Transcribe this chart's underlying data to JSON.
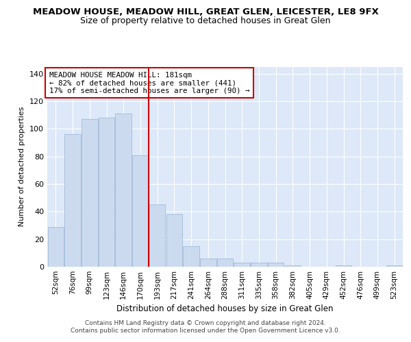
{
  "title": "MEADOW HOUSE, MEADOW HILL, GREAT GLEN, LEICESTER, LE8 9FX",
  "subtitle": "Size of property relative to detached houses in Great Glen",
  "xlabel": "Distribution of detached houses by size in Great Glen",
  "ylabel": "Number of detached properties",
  "categories": [
    "52sqm",
    "76sqm",
    "99sqm",
    "123sqm",
    "146sqm",
    "170sqm",
    "193sqm",
    "217sqm",
    "241sqm",
    "264sqm",
    "288sqm",
    "311sqm",
    "335sqm",
    "358sqm",
    "382sqm",
    "405sqm",
    "429sqm",
    "452sqm",
    "476sqm",
    "499sqm",
    "523sqm"
  ],
  "values": [
    29,
    96,
    107,
    108,
    111,
    81,
    45,
    38,
    15,
    6,
    6,
    3,
    3,
    3,
    1,
    0,
    0,
    1,
    0,
    0,
    1
  ],
  "bar_color": "#ccdaf0",
  "bar_edge_color": "#a0bcd8",
  "vline_x_index": 6,
  "vline_color": "#cc0000",
  "annotation_text": "MEADOW HOUSE MEADOW HILL: 181sqm\n← 82% of detached houses are smaller (441)\n17% of semi-detached houses are larger (90) →",
  "annotation_box_color": "#ffffff",
  "annotation_box_edge": "#cc0000",
  "ylim": [
    0,
    145
  ],
  "yticks": [
    0,
    20,
    40,
    60,
    80,
    100,
    120,
    140
  ],
  "footer": "Contains HM Land Registry data © Crown copyright and database right 2024.\nContains public sector information licensed under the Open Government Licence v3.0.",
  "title_fontsize": 9.5,
  "subtitle_fontsize": 9,
  "bg_color": "#dde8f8",
  "fig_bg_color": "#ffffff"
}
